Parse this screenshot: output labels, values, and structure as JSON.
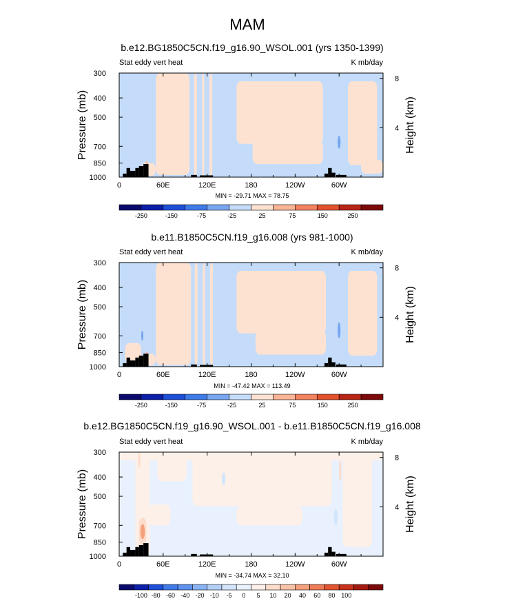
{
  "page_title": "MAM",
  "colors": {
    "land": "#000000",
    "frame": "#000000",
    "palette_12": [
      "#0a0a6e",
      "#0b1fa8",
      "#1e4fd8",
      "#3f7ae9",
      "#78a6f0",
      "#c4dcfa",
      "#fde2d2",
      "#f9b596",
      "#f38260",
      "#e2522d",
      "#b92515",
      "#7d0a0a"
    ],
    "palette_18": [
      "#0a0a6e",
      "#0b1fa8",
      "#1e4fd8",
      "#3f7ae9",
      "#5f92ee",
      "#8ab3f3",
      "#b3cff8",
      "#d3e5fb",
      "#e8f1fd",
      "#fdf0e8",
      "#fcdccb",
      "#f9c2a6",
      "#f5a07c",
      "#ee7b55",
      "#e25532",
      "#c9321c",
      "#a31b10",
      "#7d0a0a"
    ]
  },
  "chart_data": [
    {
      "type": "heatmap",
      "title": "b.e12.BG1850C5CN.f19_g16.90_WSOL.001 (yrs 1350-1399)",
      "left_string": "Stat eddy vert heat",
      "right_string": "K mb/day",
      "ylabel": "Pressure (mb)",
      "ylabel_right": "Height (km)",
      "xticks": [
        {
          "lon": 0,
          "label": "0"
        },
        {
          "lon": 60,
          "label": "60E"
        },
        {
          "lon": 120,
          "label": "120E"
        },
        {
          "lon": 180,
          "label": "180"
        },
        {
          "lon": 240,
          "label": "120W"
        },
        {
          "lon": 300,
          "label": "60W"
        }
      ],
      "xlim": [
        0,
        360
      ],
      "yticks": [
        300,
        400,
        500,
        700,
        850,
        1000
      ],
      "ylim": [
        300,
        1000
      ],
      "yscale": "log",
      "height_ticks": [
        {
          "km": 4,
          "label": "4"
        },
        {
          "km": 8,
          "label": "8"
        }
      ],
      "minmax_text": "MIN = -29.71   MAX = 78.75",
      "colorbar": {
        "palette": "palette_12",
        "labels": [
          "-250",
          "-150",
          "-75",
          "-25",
          "25",
          "75",
          "150",
          "250"
        ]
      },
      "field": {
        "background_level": 5,
        "regions": [
          {
            "lon": [
              50,
              96
            ],
            "p": [
              300,
              975
            ],
            "level": 6
          },
          {
            "lon": [
              102,
              106
            ],
            "p": [
              300,
              985
            ],
            "level": 6
          },
          {
            "lon": [
              113,
              116
            ],
            "p": [
              300,
              990
            ],
            "level": 6
          },
          {
            "lon": [
              123,
              127
            ],
            "p": [
              300,
              990
            ],
            "level": 6
          },
          {
            "lon": [
              160,
              278
            ],
            "p": [
              330,
              680
            ],
            "level": 6
          },
          {
            "lon": [
              182,
              278
            ],
            "p": [
              650,
              860
            ],
            "level": 6
          },
          {
            "lon": [
              312,
              352
            ],
            "p": [
              330,
              870
            ],
            "level": 6
          },
          {
            "lon": [
              330,
              360
            ],
            "p": [
              820,
              960
            ],
            "level": 6
          },
          {
            "lon": [
              30,
              50
            ],
            "p": [
              850,
              985
            ],
            "level": 6
          },
          {
            "lon": [
              36,
              39
            ],
            "p": [
              830,
              900
            ],
            "level": 7
          },
          {
            "lon": [
              298,
              302
            ],
            "p": [
              620,
              720
            ],
            "level": 4
          }
        ]
      }
    },
    {
      "type": "heatmap",
      "title": "b.e11.B1850C5CN.f19_g16.008 (yrs 981-1000)",
      "left_string": "Stat eddy vert heat",
      "right_string": "K mb/day",
      "ylabel": "Pressure (mb)",
      "ylabel_right": "Height (km)",
      "xticks": [
        {
          "lon": 0,
          "label": "0"
        },
        {
          "lon": 60,
          "label": "60E"
        },
        {
          "lon": 120,
          "label": "120E"
        },
        {
          "lon": 180,
          "label": "180"
        },
        {
          "lon": 240,
          "label": "120W"
        },
        {
          "lon": 300,
          "label": "60W"
        }
      ],
      "xlim": [
        0,
        360
      ],
      "yticks": [
        300,
        400,
        500,
        700,
        850,
        1000
      ],
      "ylim": [
        300,
        1000
      ],
      "yscale": "log",
      "height_ticks": [
        {
          "km": 4,
          "label": "4"
        },
        {
          "km": 8,
          "label": "8"
        }
      ],
      "minmax_text": "MIN = -47.42   MAX = 113.49",
      "colorbar": {
        "palette": "palette_12",
        "labels": [
          "-250",
          "-150",
          "-75",
          "-25",
          "25",
          "75",
          "150",
          "250"
        ]
      },
      "field": {
        "background_level": 5,
        "regions": [
          {
            "lon": [
              50,
              98
            ],
            "p": [
              300,
              980
            ],
            "level": 6
          },
          {
            "lon": [
              103,
              107
            ],
            "p": [
              300,
              985
            ],
            "level": 6
          },
          {
            "lon": [
              114,
              117
            ],
            "p": [
              300,
              990
            ],
            "level": 6
          },
          {
            "lon": [
              124,
              128
            ],
            "p": [
              300,
              990
            ],
            "level": 6
          },
          {
            "lon": [
              160,
              282
            ],
            "p": [
              330,
              680
            ],
            "level": 6
          },
          {
            "lon": [
              186,
              282
            ],
            "p": [
              650,
              870
            ],
            "level": 6
          },
          {
            "lon": [
              312,
              352
            ],
            "p": [
              330,
              880
            ],
            "level": 6
          },
          {
            "lon": [
              8,
              30
            ],
            "p": [
              760,
              960
            ],
            "level": 6
          },
          {
            "lon": [
              30,
              50
            ],
            "p": [
              860,
              985
            ],
            "level": 6
          },
          {
            "lon": [
              30,
              33
            ],
            "p": [
              660,
              740
            ],
            "level": 4
          },
          {
            "lon": [
              36,
              39
            ],
            "p": [
              840,
              900
            ],
            "level": 7
          },
          {
            "lon": [
              298,
              302
            ],
            "p": [
              600,
              720
            ],
            "level": 4
          }
        ]
      }
    },
    {
      "type": "heatmap",
      "title": "b.e12.BG1850C5CN.f19_g16.90_WSOL.001 - b.e11.B1850C5CN.f19_g16.008",
      "left_string": "Stat eddy vert heat",
      "right_string": "K mb/day",
      "ylabel": "Pressure (mb)",
      "ylabel_right": "Height (km)",
      "xticks": [
        {
          "lon": 0,
          "label": "0"
        },
        {
          "lon": 60,
          "label": "60E"
        },
        {
          "lon": 120,
          "label": "120E"
        },
        {
          "lon": 180,
          "label": "180"
        },
        {
          "lon": 240,
          "label": "120W"
        },
        {
          "lon": 300,
          "label": "60W"
        }
      ],
      "xlim": [
        0,
        360
      ],
      "yticks": [
        300,
        400,
        500,
        700,
        850,
        1000
      ],
      "ylim": [
        300,
        1000
      ],
      "yscale": "log",
      "height_ticks": [
        {
          "km": 4,
          "label": "4"
        },
        {
          "km": 8,
          "label": "8"
        }
      ],
      "minmax_text": "MIN = -34.74   MAX = 32.10",
      "colorbar": {
        "palette": "palette_18",
        "labels": [
          "-100",
          "-80",
          "-60",
          "-40",
          "-20",
          "-10",
          "-5",
          "0",
          "5",
          "10",
          "20",
          "40",
          "60",
          "80",
          "100"
        ]
      },
      "field": {
        "background_level": 8,
        "regions": [
          {
            "lon": [
              0,
              360
            ],
            "p": [
              300,
              330
            ],
            "level": 9
          },
          {
            "lon": [
              22,
              42
            ],
            "p": [
              300,
              1000
            ],
            "level": 9
          },
          {
            "lon": [
              52,
              92
            ],
            "p": [
              300,
              420
            ],
            "level": 9
          },
          {
            "lon": [
              40,
              70
            ],
            "p": [
              550,
              700
            ],
            "level": 9
          },
          {
            "lon": [
              100,
              290
            ],
            "p": [
              300,
              560
            ],
            "level": 9
          },
          {
            "lon": [
              160,
              250
            ],
            "p": [
              560,
              700
            ],
            "level": 9
          },
          {
            "lon": [
              305,
              345
            ],
            "p": [
              300,
              900
            ],
            "level": 9
          },
          {
            "lon": [
              27,
              37
            ],
            "p": [
              640,
              880
            ],
            "level": 10
          },
          {
            "lon": [
              29,
              35
            ],
            "p": [
              690,
              820
            ],
            "level": 12
          },
          {
            "lon": [
              26,
              29
            ],
            "p": [
              300,
              360
            ],
            "level": 10
          },
          {
            "lon": [
              300,
              303
            ],
            "p": [
              330,
              420
            ],
            "level": 10
          },
          {
            "lon": [
              140,
              145
            ],
            "p": [
              380,
              440
            ],
            "level": 7
          },
          {
            "lon": [
              293,
              298
            ],
            "p": [
              580,
              700
            ],
            "level": 7
          }
        ]
      }
    }
  ],
  "land_blocks": [
    {
      "lon": [
        5,
        10
      ],
      "p": [
        960,
        1000
      ]
    },
    {
      "lon": [
        10,
        15
      ],
      "p": [
        900,
        1000
      ]
    },
    {
      "lon": [
        15,
        22
      ],
      "p": [
        930,
        1000
      ]
    },
    {
      "lon": [
        22,
        27
      ],
      "p": [
        900,
        1000
      ]
    },
    {
      "lon": [
        27,
        33
      ],
      "p": [
        880,
        1000
      ]
    },
    {
      "lon": [
        33,
        40
      ],
      "p": [
        860,
        1000
      ]
    },
    {
      "lon": [
        98,
        106
      ],
      "p": [
        975,
        1000
      ]
    },
    {
      "lon": [
        110,
        128
      ],
      "p": [
        980,
        1000
      ]
    },
    {
      "lon": [
        280,
        285
      ],
      "p": [
        960,
        1000
      ]
    },
    {
      "lon": [
        285,
        290
      ],
      "p": [
        900,
        1000
      ]
    },
    {
      "lon": [
        290,
        295
      ],
      "p": [
        950,
        1000
      ]
    },
    {
      "lon": [
        296,
        310
      ],
      "p": [
        975,
        1000
      ]
    }
  ],
  "layout_note_placeholder": ""
}
